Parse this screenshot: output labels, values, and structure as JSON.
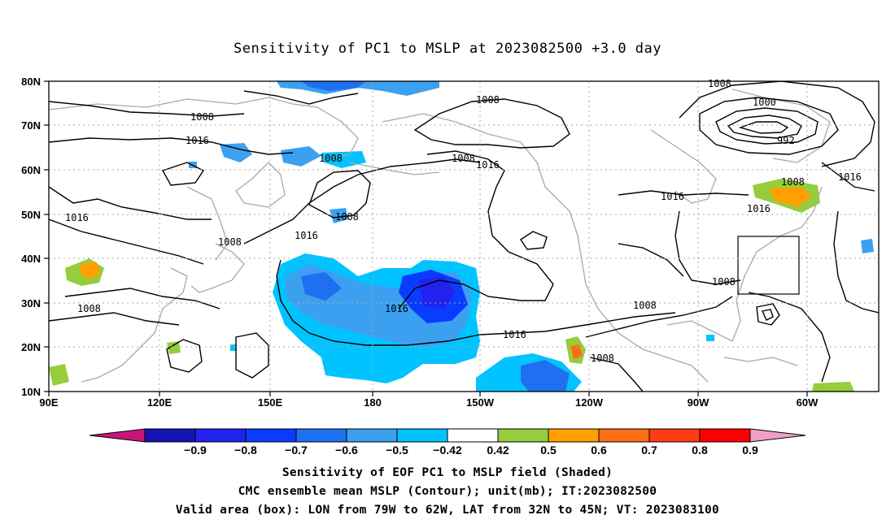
{
  "title": "Sensitivity of PC1 to MSLP at 2023082500 +3.0 day",
  "lat_labels": [
    "80N",
    "70N",
    "60N",
    "50N",
    "40N",
    "30N",
    "20N",
    "10N"
  ],
  "lon_labels": [
    "90E",
    "120E",
    "150E",
    "180",
    "150W",
    "120W",
    "90W",
    "60W"
  ],
  "contour_labels": [
    "1008",
    "1016",
    "1000",
    "992",
    "1008",
    "1016",
    "1008",
    "1016",
    "1008",
    "1016",
    "1008",
    "1016",
    "1008",
    "1008",
    "1008",
    "1016",
    "1016",
    "1008",
    "1008",
    "1016",
    "1008",
    "1016",
    "1008"
  ],
  "colorbar": {
    "labels": [
      "-0.9",
      "-0.8",
      "-0.7",
      "-0.6",
      "-0.5",
      "-0.42",
      "0.42",
      "0.5",
      "0.6",
      "0.7",
      "0.8",
      "0.9"
    ],
    "colors": [
      "#1414b4",
      "#2222ee",
      "#0a3cff",
      "#1e70f0",
      "#3ca0f0",
      "#00c3ff",
      "#ffffff",
      "#96cd3c",
      "#ffa000",
      "#ff6e14",
      "#ff3c14",
      "#ff0000"
    ],
    "end_low": "#c8147d",
    "end_high": "#f0a0c8"
  },
  "box_label": "Valid area (box): LON from 79W to 62W, LAT from 32N to 45N; VT: 2023083100",
  "captions": {
    "line1": "Sensitivity of EOF PC1 to MSLP field (Shaded)",
    "line2": "CMC ensemble mean MSLP (Contour); unit(mb); IT:2023082500",
    "line3": "Valid area (box): LON from 79W to 62W, LAT from 32N to 45N; VT: 2023083100"
  }
}
